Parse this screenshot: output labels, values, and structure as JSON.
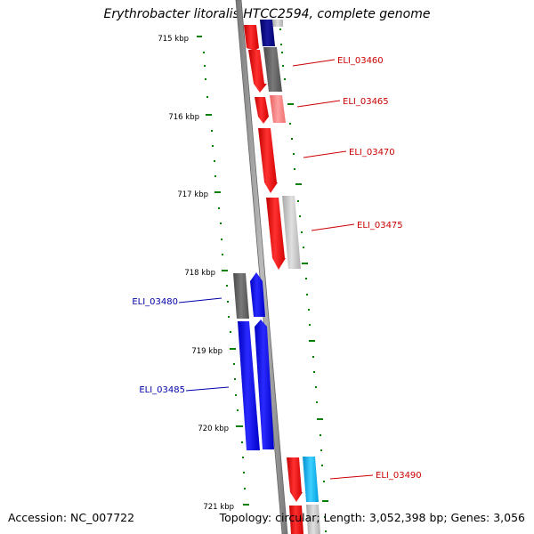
{
  "title": "Erythrobacter litoralis HTCC2594, complete genome",
  "footer": {
    "accession": "Accession: NC_007722",
    "stats": "Topology: circular; Length: 3,052,398 bp; Genes: 3,056"
  },
  "scale_labels": [
    "715 kbp",
    "716 kbp",
    "717 kbp",
    "718 kbp",
    "719 kbp",
    "720 kbp",
    "721 kbp"
  ],
  "gene_labels": [
    {
      "text": "ELI_03460",
      "color": "#cc0000"
    },
    {
      "text": "ELI_03465",
      "color": "#cc0000"
    },
    {
      "text": "ELI_03470",
      "color": "#cc0000"
    },
    {
      "text": "ELI_03475",
      "color": "#cc0000"
    },
    {
      "text": "ELI_03480",
      "color": "#0000aa"
    },
    {
      "text": "ELI_03485",
      "color": "#0000aa"
    },
    {
      "text": "ELI_03490",
      "color": "#cc0000"
    }
  ],
  "colors": {
    "forward_red": "#ff0000",
    "reverse_blue": "#0000ff",
    "dark_navy": "#000080",
    "dark_gray": "#606060",
    "light_gray": "#c8c8c8",
    "pink": "#ff8080",
    "cyan": "#00bfff",
    "axis_green": "#008000"
  }
}
